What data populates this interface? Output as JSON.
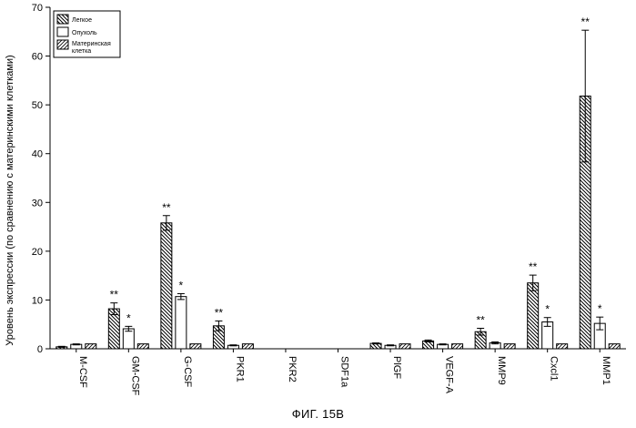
{
  "chart_data": {
    "type": "bar",
    "ylabel": "Уровень экспрессии (по сравнению с материнскими клетками)",
    "ylim": [
      0,
      70
    ],
    "yticks": [
      "0",
      "10",
      "20",
      "30",
      "40",
      "50",
      "60",
      "70"
    ],
    "categories": [
      "M-CSF",
      "GM-CSF",
      "G-CSF",
      "PKR1",
      "PKR2",
      "SDF1a",
      "PlGF",
      "VEGF-A",
      "MMP9",
      "Cxcl1",
      "MMP1"
    ],
    "legend": {
      "position": "top-left"
    },
    "series": [
      {
        "name": "Легкое",
        "pattern": "hatch-backslash",
        "values": [
          0.4,
          8.2,
          25.8,
          4.7,
          null,
          null,
          1.1,
          1.6,
          3.5,
          13.5,
          51.8
        ],
        "errors": [
          0.1,
          1.2,
          1.5,
          1.0,
          null,
          null,
          0.1,
          0.2,
          0.7,
          1.6,
          13.5
        ],
        "significance": [
          "",
          "**",
          "**",
          "**",
          "",
          "",
          "",
          "",
          "**",
          "**",
          "**"
        ]
      },
      {
        "name": "Опухоль",
        "pattern": "open",
        "values": [
          0.9,
          4.1,
          10.7,
          0.7,
          null,
          null,
          0.7,
          0.9,
          1.2,
          5.5,
          5.2
        ],
        "errors": [
          0.1,
          0.5,
          0.6,
          0.1,
          null,
          null,
          0.1,
          0.1,
          0.2,
          0.9,
          1.3
        ],
        "significance": [
          "",
          "*",
          "*",
          "",
          "",
          "",
          "",
          "",
          "",
          "*",
          "*"
        ]
      },
      {
        "name": "Материнская клетка",
        "name_lines": [
          "Материнская",
          "клетка"
        ],
        "pattern": "hatch-slash",
        "values": [
          1.0,
          1.0,
          1.0,
          1.0,
          null,
          null,
          1.0,
          1.0,
          1.0,
          1.0,
          1.0
        ],
        "errors": [
          0,
          0,
          0,
          0,
          null,
          null,
          0,
          0,
          0,
          0,
          0
        ],
        "significance": [
          "",
          "",
          "",
          "",
          "",
          "",
          "",
          "",
          "",
          "",
          ""
        ]
      }
    ]
  },
  "caption": "ФИГ. 15В"
}
